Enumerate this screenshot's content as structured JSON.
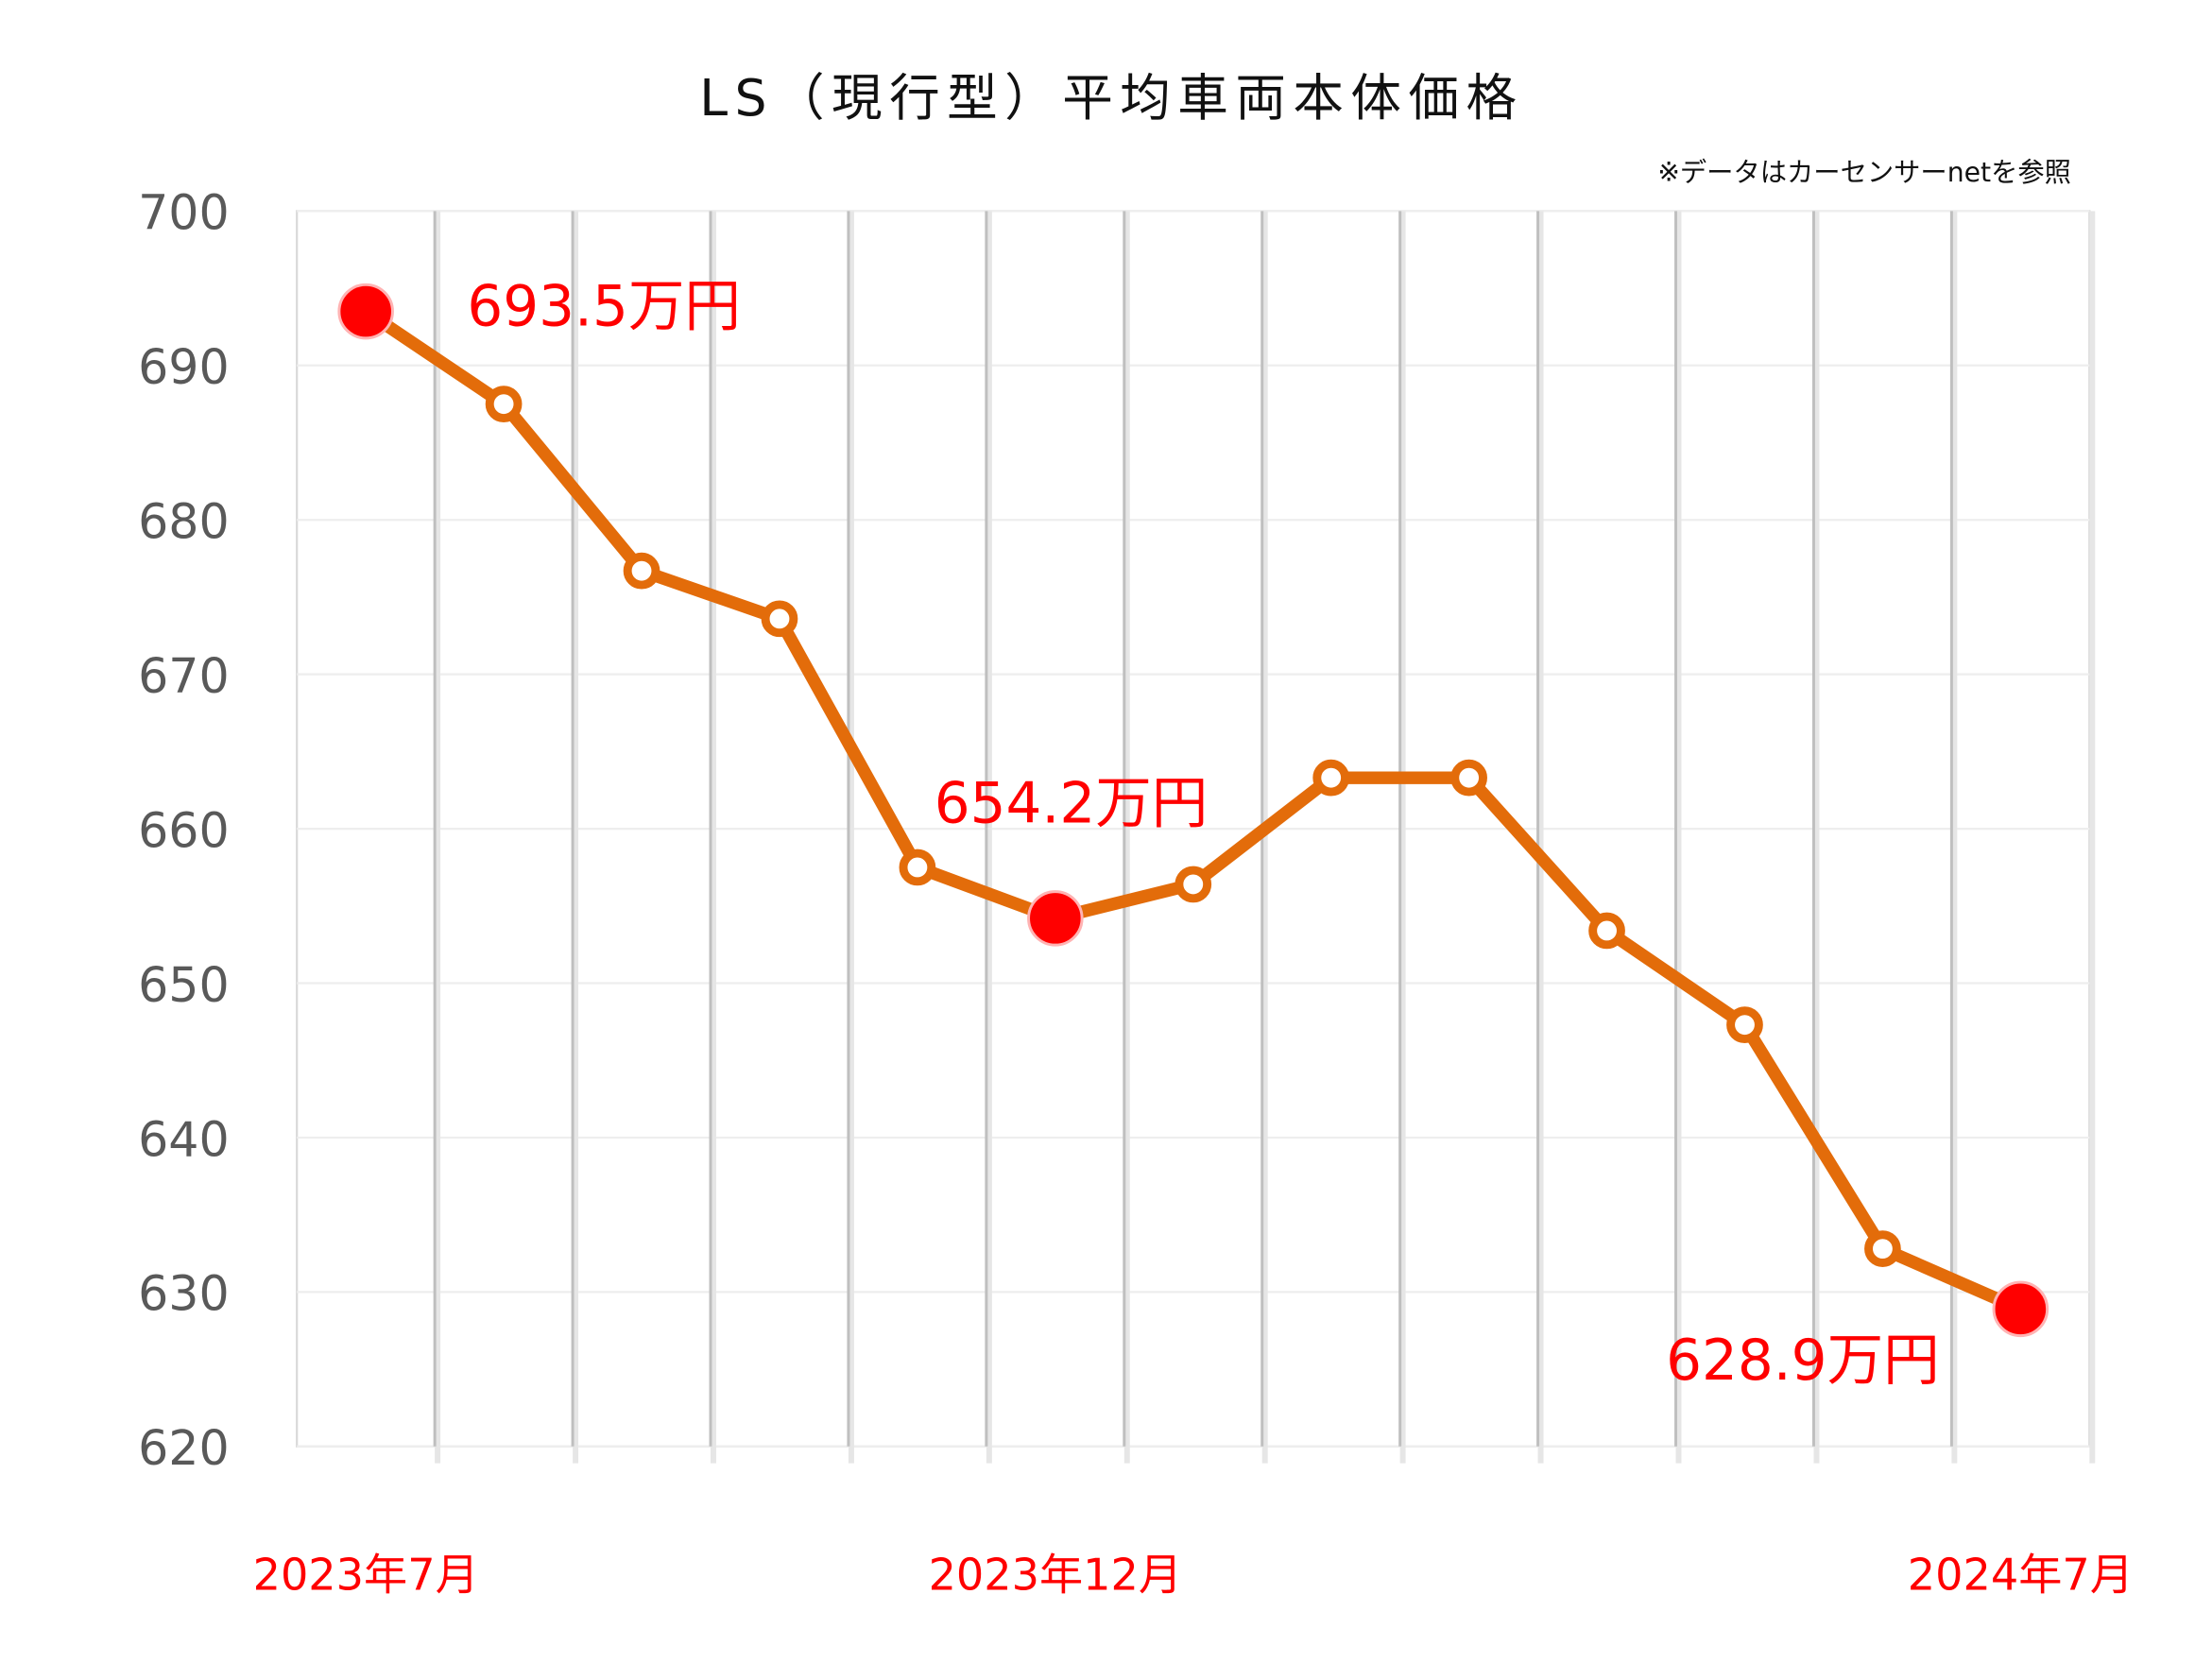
{
  "chart_data": {
    "type": "line",
    "title": "LS（現行型）平均車両本体価格",
    "note": "※データはカーセンサーnetを参照",
    "xlabel": "",
    "ylabel": "",
    "ylim": [
      620,
      700
    ],
    "yticks": [
      "700",
      "690",
      "680",
      "670",
      "660",
      "650",
      "640",
      "630",
      "620"
    ],
    "categories": [
      "2023-07",
      "2023-08",
      "2023-09",
      "2023-10",
      "2023-11",
      "2023-12",
      "2024-01",
      "2024-02",
      "2024-03",
      "2024-04",
      "2024-05",
      "2024-06",
      "2024-07"
    ],
    "x_tick_labels": [
      {
        "index": 0,
        "label": "2023年7月"
      },
      {
        "index": 5,
        "label": "2023年12月"
      },
      {
        "index": 12,
        "label": "2024年7月"
      }
    ],
    "series": [
      {
        "name": "平均車両本体価格",
        "color": "#E36C0A",
        "values": [
          693.5,
          687.5,
          676.7,
          673.6,
          657.5,
          654.2,
          656.4,
          663.3,
          663.3,
          653.4,
          647.3,
          632.8,
          628.9
        ]
      }
    ],
    "highlight_color": "#FF0000",
    "annotations": [
      {
        "index": 0,
        "label": "693.5万円"
      },
      {
        "index": 5,
        "label": "654.2万円"
      },
      {
        "index": 12,
        "label": "628.9万円"
      }
    ],
    "grid": true,
    "legend": "none"
  }
}
